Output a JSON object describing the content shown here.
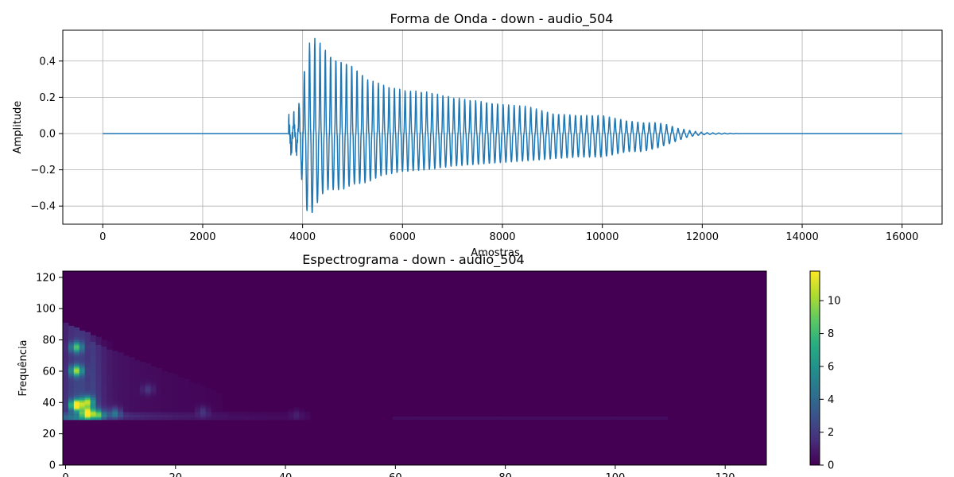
{
  "chart_data": [
    {
      "type": "line",
      "title": "Forma de Onda - down - audio_504",
      "xlabel": "Amostras",
      "ylabel": "Amplitude",
      "xlim": [
        -800,
        16800
      ],
      "ylim": [
        -0.5,
        0.57
      ],
      "xticks": [
        0,
        2000,
        4000,
        6000,
        8000,
        10000,
        12000,
        14000,
        16000
      ],
      "yticks": [
        -0.4,
        -0.2,
        0.0,
        0.2,
        0.4
      ],
      "grid": true,
      "line_color": "#1f77b4",
      "series": [
        {
          "x": [
            0,
            3700,
            3740,
            3800,
            3900,
            3950,
            4000,
            4050,
            4100,
            4150,
            4200,
            4250,
            4300,
            4350,
            4400,
            4500,
            4600,
            4700,
            4800,
            5000,
            5200,
            5500,
            6000,
            6500,
            7000,
            7500,
            8000,
            8500,
            9000,
            9500,
            10000,
            10500,
            11000,
            11200,
            11400,
            11600,
            11800,
            12000,
            12400,
            12600,
            13000,
            14000,
            16000
          ],
          "y": [
            0.0,
            0.0,
            0.07,
            -0.06,
            0.06,
            0.1,
            -0.08,
            0.29,
            -0.27,
            0.48,
            -0.45,
            0.53,
            -0.43,
            0.22,
            -0.15,
            0.1,
            -0.2,
            0.45,
            -0.29,
            0.38,
            -0.28,
            0.3,
            -0.22,
            0.25,
            -0.2,
            0.2,
            0.16,
            -0.17,
            0.14,
            -0.15,
            0.12,
            -0.12,
            0.06,
            -0.06,
            0.03,
            -0.02,
            0.01,
            0.0,
            0.005,
            -0.005,
            0.0,
            0.0,
            0.0
          ],
          "envelope": {
            "x": [
              3720,
              3900,
              4000,
              4100,
              4200,
              4300,
              4450,
              4600,
              4800,
              5000,
              5300,
              5600,
              6000,
              6500,
              7000,
              7500,
              8000,
              8500,
              9000,
              9500,
              10000,
              10500,
              10800,
              11100,
              11300,
              11500,
              11700,
              11900,
              12100,
              12400,
              12800
            ],
            "upper": [
              0.07,
              0.12,
              0.29,
              0.48,
              0.53,
              0.52,
              0.47,
              0.42,
              0.4,
              0.38,
              0.3,
              0.27,
              0.24,
              0.23,
              0.2,
              0.18,
              0.16,
              0.15,
              0.11,
              0.1,
              0.1,
              0.07,
              0.06,
              0.06,
              0.05,
              0.03,
              0.02,
              0.01,
              0.005,
              0.003,
              0.0
            ],
            "lower": [
              -0.08,
              -0.1,
              -0.27,
              -0.45,
              -0.44,
              -0.38,
              -0.31,
              -0.31,
              -0.31,
              -0.28,
              -0.27,
              -0.23,
              -0.21,
              -0.2,
              -0.18,
              -0.17,
              -0.16,
              -0.15,
              -0.14,
              -0.13,
              -0.13,
              -0.1,
              -0.1,
              -0.08,
              -0.06,
              -0.04,
              -0.02,
              -0.01,
              -0.005,
              -0.003,
              0.0
            ],
            "cycles": 82
          }
        }
      ]
    },
    {
      "type": "heatmap",
      "title": "Espectrograma - down - audio_504",
      "xlabel": "",
      "ylabel": "Frequência",
      "xlim": [
        0,
        128
      ],
      "ylim": [
        0,
        124
      ],
      "xticks": [
        0,
        20,
        40,
        60,
        80,
        100,
        120
      ],
      "yticks": [
        0,
        20,
        40,
        60,
        80,
        100,
        120
      ],
      "colormap": "viridis",
      "colorbar": {
        "min": 0,
        "max": 11.8,
        "ticks": [
          0,
          2,
          4,
          6,
          8,
          10
        ]
      },
      "grid": false,
      "dominant_energy": {
        "note": "Strong energy in columns 0-9, frequency rows 30-90; peaks near rows 33-45 at columns 2-4",
        "peaks": [
          {
            "col": 2,
            "row": 38,
            "value": 11.5
          },
          {
            "col": 2,
            "row": 60,
            "value": 8.0
          },
          {
            "col": 2,
            "row": 75,
            "value": 6.5
          },
          {
            "col": 4,
            "row": 33,
            "value": 10.5
          },
          {
            "col": 4,
            "row": 40,
            "value": 8.0
          },
          {
            "col": 6,
            "row": 32,
            "value": 6.0
          },
          {
            "col": 9,
            "row": 33,
            "value": 3.5
          },
          {
            "col": 15,
            "row": 48,
            "value": 1.5
          },
          {
            "col": 25,
            "row": 34,
            "value": 1.5
          },
          {
            "col": 42,
            "row": 32,
            "value": 0.8
          }
        ]
      }
    }
  ],
  "colors": {
    "line": "#1f77b4",
    "grid": "#b0b0b0",
    "background": "#ffffff",
    "viridis_low": "#440154",
    "viridis_high": "#fde725"
  }
}
